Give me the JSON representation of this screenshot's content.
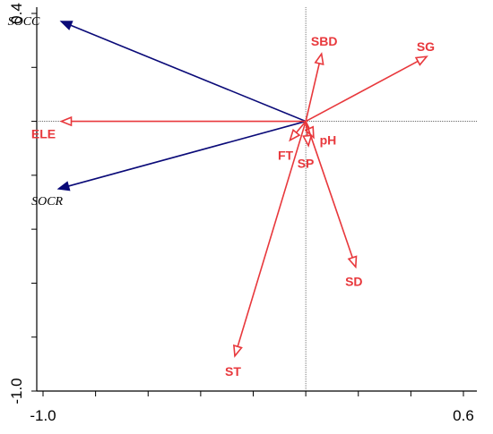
{
  "colors": {
    "explanatory": "#e8383c",
    "response": "#0a0a78",
    "axis": "#000000",
    "crosshair": "#555555"
  },
  "chart_data": {
    "type": "biplot",
    "title": "",
    "xlabel": "",
    "ylabel": "",
    "xlim": [
      -1.0,
      0.6
    ],
    "ylim": [
      -1.0,
      0.4
    ],
    "x_tick_labels": [
      "-1.0",
      "0.6"
    ],
    "y_tick_labels": [
      "0.4",
      "-1.0"
    ],
    "origin_lines": "dotted",
    "response_vectors": [
      {
        "name": "SOCC",
        "x": -0.93,
        "y": 0.37
      },
      {
        "name": "SOCR",
        "x": -0.94,
        "y": -0.25
      }
    ],
    "explanatory_vectors": [
      {
        "name": "ELE",
        "x": -0.93,
        "y": 0.0
      },
      {
        "name": "SBD",
        "x": 0.06,
        "y": 0.25
      },
      {
        "name": "SG",
        "x": 0.46,
        "y": 0.24
      },
      {
        "name": "FT",
        "x": -0.06,
        "y": -0.07
      },
      {
        "name": "pH",
        "x": 0.03,
        "y": -0.06
      },
      {
        "name": "SP",
        "x": 0.01,
        "y": -0.09
      },
      {
        "name": "SD",
        "x": 0.19,
        "y": -0.54
      },
      {
        "name": "ST",
        "x": -0.27,
        "y": -0.87
      }
    ]
  }
}
